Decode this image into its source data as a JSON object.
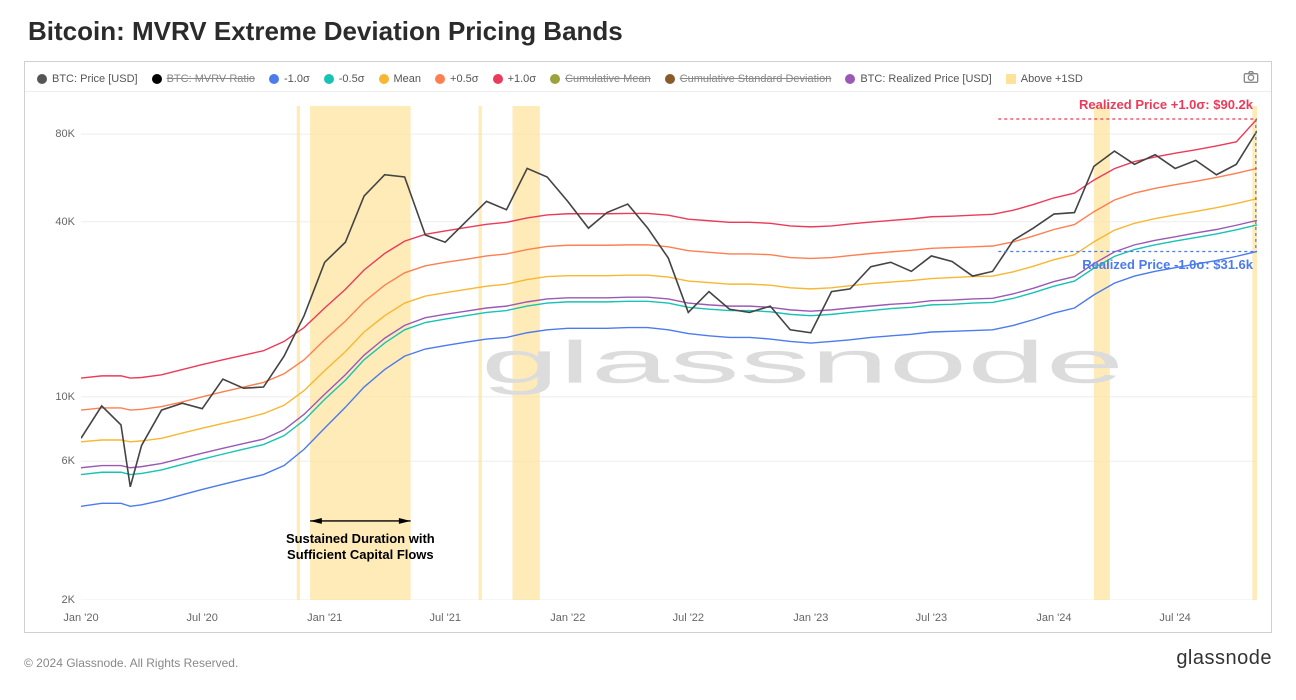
{
  "title": "Bitcoin: MVRV Extreme Deviation Pricing Bands",
  "footer": {
    "copyright": "© 2024 Glassnode. All Rights Reserved.",
    "brand": "glassnode"
  },
  "watermark": {
    "text": "glassnode",
    "color": "#dcdcdc",
    "fontsize": 42
  },
  "legend": {
    "items": [
      {
        "label": "BTC: Price [USD]",
        "color": "#555555",
        "shape": "circle",
        "strike": false
      },
      {
        "label": "BTC: MVRV Ratio",
        "color": "#000000",
        "shape": "circle",
        "strike": true
      },
      {
        "label": "-1.0σ",
        "color": "#4b7bec",
        "shape": "circle",
        "strike": false
      },
      {
        "label": "-0.5σ",
        "color": "#17c3b2",
        "shape": "circle",
        "strike": false
      },
      {
        "label": "Mean",
        "color": "#f7b731",
        "shape": "circle",
        "strike": false
      },
      {
        "label": "+0.5σ",
        "color": "#ff7f50",
        "shape": "circle",
        "strike": false
      },
      {
        "label": "+1.0σ",
        "color": "#eb3b5a",
        "shape": "circle",
        "strike": false
      },
      {
        "label": "Cumulative Mean",
        "color": "#9aa43a",
        "shape": "circle",
        "strike": true
      },
      {
        "label": "Cumulative Standard Deviation",
        "color": "#8a5a2b",
        "shape": "circle",
        "strike": true
      },
      {
        "label": "BTC: Realized Price [USD]",
        "color": "#9b59b6",
        "shape": "circle",
        "strike": false
      },
      {
        "label": "Above +1SD",
        "color": "#ffe29a",
        "shape": "square",
        "strike": false
      }
    ]
  },
  "chart": {
    "type": "line",
    "yscale": "log",
    "ylim": [
      2000,
      100000
    ],
    "yticks": [
      {
        "v": 2000,
        "label": "2K"
      },
      {
        "v": 6000,
        "label": "6K"
      },
      {
        "v": 10000,
        "label": "10K"
      },
      {
        "v": 40000,
        "label": "40K"
      },
      {
        "v": 80000,
        "label": "80K"
      }
    ],
    "xlim": [
      "2020-01-01",
      "2024-11-01"
    ],
    "xticks": [
      {
        "d": "2020-01-01",
        "label": "Jan '20"
      },
      {
        "d": "2020-07-01",
        "label": "Jul '20"
      },
      {
        "d": "2021-01-01",
        "label": "Jan '21"
      },
      {
        "d": "2021-07-01",
        "label": "Jul '21"
      },
      {
        "d": "2022-01-01",
        "label": "Jan '22"
      },
      {
        "d": "2022-07-01",
        "label": "Jul '22"
      },
      {
        "d": "2023-01-01",
        "label": "Jan '23"
      },
      {
        "d": "2023-07-01",
        "label": "Jul '23"
      },
      {
        "d": "2024-01-01",
        "label": "Jan '24"
      },
      {
        "d": "2024-07-01",
        "label": "Jul '24"
      }
    ],
    "background_color": "#ffffff",
    "grid_color": "#eeeeee",
    "line_width": 1.4,
    "above_1sd_bars": {
      "color": "#ffe29a",
      "opacity": 0.7,
      "ranges": [
        [
          "2020-11-20",
          "2020-11-25"
        ],
        [
          "2020-12-10",
          "2021-05-10"
        ],
        [
          "2021-08-20",
          "2021-08-25"
        ],
        [
          "2021-10-10",
          "2021-11-20"
        ],
        [
          "2024-03-01",
          "2024-03-25"
        ],
        [
          "2024-10-25",
          "2024-11-01"
        ]
      ]
    },
    "annotations": {
      "upper": {
        "text": "Realized Price +1.0σ: $90.2k",
        "color": "#eb3b5a",
        "value": 90200,
        "fontsize": 13
      },
      "lower": {
        "text": "Realized Price -1.0σ: $31.6k",
        "color": "#4b7bec",
        "value": 31600,
        "fontsize": 13
      },
      "sustained": {
        "line1": "Sustained Duration with",
        "line2": "Sufficient Capital Flows",
        "color": "#000000",
        "fontsize": 13,
        "range": [
          "2020-12-10",
          "2021-05-10"
        ]
      }
    },
    "series": {
      "sample_dates": [
        "2020-01-01",
        "2020-02-01",
        "2020-03-01",
        "2020-03-15",
        "2020-04-01",
        "2020-05-01",
        "2020-06-01",
        "2020-07-01",
        "2020-08-01",
        "2020-09-01",
        "2020-10-01",
        "2020-11-01",
        "2020-12-01",
        "2021-01-01",
        "2021-02-01",
        "2021-03-01",
        "2021-04-01",
        "2021-05-01",
        "2021-06-01",
        "2021-07-01",
        "2021-08-01",
        "2021-09-01",
        "2021-10-01",
        "2021-11-01",
        "2021-12-01",
        "2022-01-01",
        "2022-02-01",
        "2022-03-01",
        "2022-04-01",
        "2022-05-01",
        "2022-06-01",
        "2022-07-01",
        "2022-08-01",
        "2022-09-01",
        "2022-10-01",
        "2022-11-01",
        "2022-12-01",
        "2023-01-01",
        "2023-02-01",
        "2023-03-01",
        "2023-04-01",
        "2023-05-01",
        "2023-06-01",
        "2023-07-01",
        "2023-08-01",
        "2023-09-01",
        "2023-10-01",
        "2023-11-01",
        "2023-12-01",
        "2024-01-01",
        "2024-02-01",
        "2024-03-01",
        "2024-04-01",
        "2024-05-01",
        "2024-06-01",
        "2024-07-01",
        "2024-08-01",
        "2024-09-01",
        "2024-10-01",
        "2024-11-01"
      ],
      "price": {
        "color": "#444444",
        "values": [
          7200,
          9300,
          8000,
          4900,
          6800,
          9000,
          9500,
          9100,
          11500,
          10700,
          10800,
          13800,
          19000,
          29000,
          34000,
          49000,
          58000,
          57000,
          36000,
          34000,
          40000,
          47000,
          44000,
          61000,
          57000,
          47000,
          38000,
          43000,
          46000,
          38000,
          30000,
          19500,
          23000,
          20000,
          19500,
          20500,
          17000,
          16600,
          23000,
          23500,
          28000,
          29000,
          27000,
          30500,
          29200,
          26000,
          27000,
          34500,
          38000,
          42500,
          43000,
          62000,
          70000,
          63000,
          68000,
          61000,
          65000,
          58000,
          63000,
          82000
        ]
      },
      "minus_1sd": {
        "color": "#4b7bec",
        "values": [
          4200,
          4300,
          4300,
          4200,
          4250,
          4400,
          4600,
          4800,
          5000,
          5200,
          5400,
          5800,
          6600,
          7800,
          9200,
          10800,
          12400,
          13800,
          14600,
          15000,
          15400,
          15800,
          16000,
          16600,
          17000,
          17200,
          17200,
          17200,
          17300,
          17300,
          17000,
          16500,
          16200,
          16000,
          16000,
          15800,
          15500,
          15300,
          15500,
          15700,
          16000,
          16200,
          16400,
          16700,
          16800,
          16900,
          17000,
          17600,
          18400,
          19400,
          20200,
          22400,
          24600,
          26000,
          27000,
          27800,
          28600,
          29400,
          30400,
          31600
        ]
      },
      "minus_05sd": {
        "color": "#17c3b2",
        "values": [
          5400,
          5500,
          5500,
          5400,
          5450,
          5600,
          5850,
          6100,
          6350,
          6600,
          6850,
          7350,
          8300,
          9800,
          11400,
          13400,
          15300,
          17000,
          18000,
          18500,
          19000,
          19500,
          19800,
          20500,
          21000,
          21200,
          21200,
          21200,
          21300,
          21300,
          21000,
          20300,
          20000,
          19800,
          19800,
          19600,
          19200,
          19000,
          19200,
          19500,
          19800,
          20100,
          20300,
          20700,
          20800,
          21000,
          21100,
          21800,
          22800,
          24000,
          25000,
          27700,
          30400,
          32100,
          33300,
          34300,
          35300,
          36300,
          37500,
          39000
        ]
      },
      "mean": {
        "color": "#f7b731",
        "values": [
          7000,
          7100,
          7100,
          7000,
          7050,
          7200,
          7500,
          7800,
          8100,
          8400,
          8750,
          9350,
          10500,
          12300,
          14300,
          16700,
          19000,
          21000,
          22200,
          22800,
          23400,
          24000,
          24400,
          25300,
          25900,
          26100,
          26100,
          26100,
          26200,
          26200,
          25800,
          25000,
          24700,
          24400,
          24400,
          24200,
          23700,
          23500,
          23700,
          24100,
          24500,
          24800,
          25100,
          25500,
          25700,
          25900,
          26000,
          26900,
          28100,
          29600,
          30800,
          34100,
          37400,
          39500,
          41000,
          42200,
          43400,
          44700,
          46200,
          48000
        ]
      },
      "plus_05sd": {
        "color": "#ff7f50",
        "values": [
          9000,
          9150,
          9150,
          9000,
          9050,
          9250,
          9600,
          10000,
          10400,
          10800,
          11200,
          12000,
          13400,
          15700,
          18200,
          21200,
          24200,
          26700,
          28200,
          29000,
          29700,
          30500,
          31000,
          32100,
          32900,
          33200,
          33200,
          33200,
          33300,
          33300,
          32800,
          31800,
          31400,
          31000,
          31000,
          30800,
          30100,
          29900,
          30100,
          30600,
          31100,
          31500,
          31900,
          32400,
          32600,
          32800,
          33000,
          34100,
          35700,
          37600,
          39100,
          43300,
          47500,
          50200,
          52100,
          53600,
          55100,
          56800,
          58700,
          61000
        ]
      },
      "plus_1sd": {
        "color": "#eb3b5a",
        "values": [
          11600,
          11800,
          11800,
          11600,
          11650,
          11900,
          12400,
          12900,
          13400,
          13900,
          14400,
          15500,
          17300,
          20200,
          23400,
          27300,
          31100,
          34300,
          36200,
          37200,
          38200,
          39200,
          39800,
          41200,
          42200,
          42600,
          42600,
          42600,
          42700,
          42700,
          42100,
          40800,
          40300,
          39800,
          39800,
          39500,
          38700,
          38400,
          38700,
          39300,
          39900,
          40400,
          40900,
          41600,
          41800,
          42100,
          42400,
          43800,
          45800,
          48300,
          50200,
          55600,
          60900,
          64400,
          66800,
          68800,
          70700,
          72900,
          75300,
          90200
        ]
      },
      "realized_price": {
        "color": "#9b59b6",
        "values": [
          5700,
          5800,
          5800,
          5700,
          5750,
          5900,
          6150,
          6400,
          6650,
          6900,
          7150,
          7700,
          8700,
          10200,
          11900,
          13900,
          15900,
          17600,
          18700,
          19200,
          19700,
          20200,
          20500,
          21200,
          21700,
          21900,
          21900,
          21900,
          22000,
          22000,
          21700,
          21000,
          20700,
          20500,
          20500,
          20300,
          19900,
          19700,
          19900,
          20200,
          20500,
          20800,
          21000,
          21400,
          21500,
          21700,
          21800,
          22600,
          23600,
          24900,
          25900,
          28700,
          31500,
          33300,
          34500,
          35500,
          36600,
          37600,
          38900,
          40400
        ]
      }
    }
  }
}
